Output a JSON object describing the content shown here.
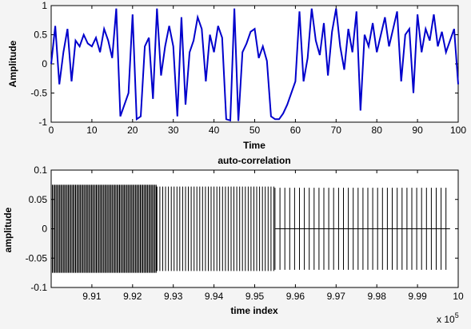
{
  "chart_data": [
    {
      "type": "line",
      "title": "",
      "xlabel": "Time",
      "ylabel": "Amplitude",
      "xlim": [
        0,
        100
      ],
      "ylim": [
        -1,
        1
      ],
      "xticks": [
        "0",
        "10",
        "20",
        "30",
        "40",
        "50",
        "60",
        "70",
        "80",
        "90",
        "100"
      ],
      "yticks": [
        "-1",
        "-0.5",
        "0",
        "0.5",
        "1"
      ],
      "series": [
        {
          "color": "#0000cc",
          "x": [
            0,
            1,
            2,
            3,
            4,
            5,
            6,
            7,
            8,
            9,
            10,
            11,
            12,
            13,
            14,
            15,
            16,
            17,
            18,
            19,
            20,
            21,
            22,
            23,
            24,
            25,
            26,
            27,
            28,
            29,
            30,
            31,
            32,
            33,
            34,
            35,
            36,
            37,
            38,
            39,
            40,
            41,
            42,
            43,
            44,
            45,
            46,
            47,
            48,
            49,
            50,
            51,
            52,
            53,
            54,
            55,
            56,
            57,
            58,
            59,
            60,
            61,
            62,
            63,
            64,
            65,
            66,
            67,
            68,
            69,
            70,
            71,
            72,
            73,
            74,
            75,
            76,
            77,
            78,
            79,
            80,
            81,
            82,
            83,
            84,
            85,
            86,
            87,
            88,
            89,
            90,
            91,
            92,
            93,
            94,
            95,
            96,
            97,
            98,
            99,
            100
          ],
          "y": [
            0.0,
            0.65,
            -0.35,
            0.2,
            0.6,
            -0.3,
            0.4,
            0.3,
            0.5,
            0.35,
            0.3,
            0.45,
            0.2,
            0.6,
            0.4,
            0.1,
            0.95,
            -0.9,
            -0.7,
            -0.5,
            0.85,
            -0.95,
            -0.9,
            0.3,
            0.45,
            -0.6,
            0.95,
            -0.2,
            0.3,
            0.65,
            0.3,
            -0.9,
            0.8,
            -0.7,
            0.2,
            0.4,
            0.8,
            0.6,
            -0.3,
            0.5,
            0.2,
            0.65,
            0.45,
            -0.95,
            -0.97,
            0.95,
            -0.98,
            0.2,
            0.35,
            0.55,
            0.6,
            0.1,
            0.3,
            0.05,
            -0.9,
            -0.95,
            -0.95,
            -0.85,
            -0.7,
            -0.5,
            -0.3,
            0.9,
            -0.3,
            0.1,
            0.95,
            0.4,
            0.15,
            0.7,
            -0.2,
            0.55,
            0.95,
            0.3,
            -0.1,
            0.6,
            0.2,
            0.9,
            -0.8,
            0.5,
            0.3,
            0.7,
            0.2,
            0.5,
            0.8,
            0.3,
            0.6,
            0.9,
            -0.3,
            0.5,
            0.6,
            -0.5,
            0.85,
            0.2,
            0.6,
            0.4,
            0.85,
            0.3,
            0.55,
            0.2,
            0.4,
            0.6,
            -0.35
          ]
        }
      ]
    },
    {
      "type": "line",
      "title": "auto-correlation",
      "xlabel": "time index",
      "ylabel": "amplitude",
      "x_scale_note": "x 10",
      "x_scale_exp": "5",
      "xlim": [
        9.9,
        10.0
      ],
      "ylim": [
        -0.1,
        0.1
      ],
      "xticks": [
        "9.91",
        "9.92",
        "9.93",
        "9.94",
        "9.95",
        "9.96",
        "9.97",
        "9.98",
        "9.99",
        "10"
      ],
      "yticks": [
        "-0.1",
        "-0.05",
        "0",
        "0.05",
        "0.1"
      ],
      "series": [
        {
          "color": "#000000",
          "description_free": true,
          "segments": [
            {
              "x_from": 9.9,
              "x_to": 9.926,
              "amplitude": 0.075,
              "spacing": 0.0003
            },
            {
              "x_from": 9.926,
              "x_to": 9.955,
              "amplitude": 0.072,
              "spacing": 0.0007
            },
            {
              "x_from": 9.955,
              "x_to": 9.998,
              "amplitude": 0.07,
              "spacing": 0.0012
            }
          ]
        }
      ]
    }
  ]
}
